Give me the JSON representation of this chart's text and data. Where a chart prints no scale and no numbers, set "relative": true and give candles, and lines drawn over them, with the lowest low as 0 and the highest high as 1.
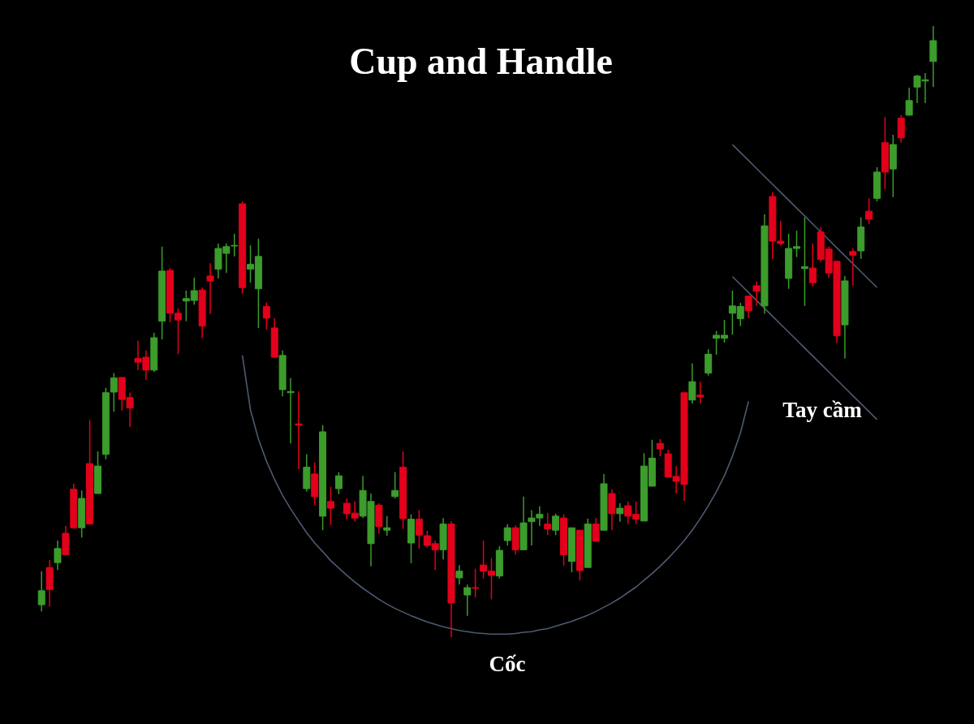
{
  "chart_data": {
    "type": "candlestick",
    "title": "Cup and Handle",
    "relative": true,
    "annotations": [
      "Cốc",
      "Tay cầm"
    ],
    "categories": [
      null,
      null,
      null,
      null,
      null,
      null,
      null,
      null,
      null,
      null,
      null,
      null,
      null,
      null,
      null,
      null,
      null,
      null,
      null,
      null,
      null,
      null,
      null,
      null,
      null,
      null,
      null,
      null,
      null,
      null,
      null,
      null,
      null,
      null,
      null,
      null,
      null,
      null,
      null,
      null,
      null,
      null,
      null,
      null,
      null,
      null,
      null,
      null,
      null,
      null,
      null,
      null,
      null,
      null,
      null,
      null,
      null,
      null,
      null,
      null,
      null,
      null,
      null,
      null,
      null,
      null,
      null,
      null,
      null,
      null,
      null,
      null,
      null,
      null,
      null,
      null,
      null,
      null,
      null,
      null,
      null,
      null,
      null,
      null,
      null,
      null,
      null,
      null,
      null,
      null,
      null,
      null,
      null,
      null,
      null,
      null,
      null,
      null,
      null,
      null,
      null,
      null,
      null,
      null,
      null,
      null,
      null,
      null,
      null,
      null,
      null,
      null
    ],
    "series": [
      {
        "type": "line",
        "color": "#4d5b70",
        "values": [
          null,
          null,
          null,
          null,
          null,
          null,
          null,
          null,
          null,
          null,
          null,
          null,
          null,
          null,
          null,
          null,
          null,
          null,
          null,
          null,
          null,
          null,
          null,
          null,
          null,
          0.461,
          0.372,
          0.324,
          0.288,
          0.258,
          0.232,
          0.21,
          0.19,
          0.171,
          0.154,
          0.14,
          0.125,
          0.113,
          0.101,
          0.09,
          0.08,
          0.071,
          0.062,
          0.054,
          0.047,
          0.041,
          0.035,
          0.03,
          0.025,
          0.021,
          0.017,
          0.014,
          0.011,
          0.009,
          0.007,
          0.006,
          0.005,
          0.005,
          0.005,
          0.006,
          0.008,
          0.009,
          0.012,
          0.014,
          0.018,
          0.022,
          0.026,
          0.031,
          0.036,
          0.042,
          0.049,
          0.056,
          0.064,
          0.073,
          0.082,
          0.093,
          0.104,
          0.116,
          0.129,
          0.143,
          0.158,
          0.175,
          0.194,
          0.215,
          0.238,
          0.264,
          0.296,
          0.334,
          0.386,
          null,
          null,
          null,
          null,
          null,
          null,
          null,
          null,
          null,
          null,
          null,
          null,
          null,
          null,
          null,
          null,
          null,
          null,
          null,
          null,
          null,
          null,
          null
        ]
      },
      {
        "type": "line",
        "color": "#4d5b70",
        "values": [
          null,
          null,
          null,
          null,
          null,
          null,
          null,
          null,
          null,
          null,
          null,
          null,
          null,
          null,
          null,
          null,
          null,
          null,
          null,
          null,
          null,
          null,
          null,
          null,
          null,
          null,
          null,
          null,
          null,
          null,
          null,
          null,
          null,
          null,
          null,
          null,
          null,
          null,
          null,
          null,
          null,
          null,
          null,
          null,
          null,
          null,
          null,
          null,
          null,
          null,
          null,
          null,
          null,
          null,
          null,
          null,
          null,
          null,
          null,
          null,
          null,
          null,
          null,
          null,
          null,
          null,
          null,
          null,
          null,
          null,
          null,
          null,
          null,
          null,
          null,
          null,
          null,
          null,
          null,
          null,
          null,
          null,
          null,
          null,
          null,
          null,
          0.806,
          0.793,
          0.78,
          0.767,
          0.754,
          0.741,
          0.728,
          0.715,
          0.702,
          0.689,
          0.676,
          0.663,
          0.65,
          0.637,
          0.624,
          0.611,
          0.598,
          0.585,
          0.572,
          null,
          null,
          null,
          null,
          null,
          null,
          null
        ]
      },
      {
        "type": "line",
        "color": "#4d5b70",
        "values": [
          null,
          null,
          null,
          null,
          null,
          null,
          null,
          null,
          null,
          null,
          null,
          null,
          null,
          null,
          null,
          null,
          null,
          null,
          null,
          null,
          null,
          null,
          null,
          null,
          null,
          null,
          null,
          null,
          null,
          null,
          null,
          null,
          null,
          null,
          null,
          null,
          null,
          null,
          null,
          null,
          null,
          null,
          null,
          null,
          null,
          null,
          null,
          null,
          null,
          null,
          null,
          null,
          null,
          null,
          null,
          null,
          null,
          null,
          null,
          null,
          null,
          null,
          null,
          null,
          null,
          null,
          null,
          null,
          null,
          null,
          null,
          null,
          null,
          null,
          null,
          null,
          null,
          null,
          null,
          null,
          null,
          null,
          null,
          null,
          null,
          null,
          0.59,
          0.577,
          0.564,
          0.551,
          0.538,
          0.525,
          0.512,
          0.499,
          0.486,
          0.473,
          0.46,
          0.447,
          0.434,
          0.421,
          0.408,
          0.395,
          0.382,
          0.369,
          0.356,
          null,
          null,
          null,
          null,
          null,
          null,
          null
        ]
      }
    ],
    "ohlc": [
      [
        0.053,
        0.108,
        0.042,
        0.076
      ],
      [
        0.114,
        0.126,
        0.05,
        0.078
      ],
      [
        0.122,
        0.158,
        0.11,
        0.145
      ],
      [
        0.17,
        0.182,
        0.135,
        0.135
      ],
      [
        0.242,
        0.251,
        0.177,
        0.179
      ],
      [
        0.179,
        0.24,
        0.163,
        0.227
      ],
      [
        0.284,
        0.355,
        0.185,
        0.185
      ],
      [
        0.235,
        0.304,
        0.235,
        0.28
      ],
      [
        0.299,
        0.408,
        0.291,
        0.4
      ],
      [
        0.401,
        0.432,
        0.369,
        0.424
      ],
      [
        0.425,
        0.425,
        0.371,
        0.389
      ],
      [
        0.392,
        0.4,
        0.344,
        0.375
      ],
      [
        0.456,
        0.485,
        0.437,
        0.45
      ],
      [
        0.458,
        0.469,
        0.421,
        0.437
      ],
      [
        0.437,
        0.498,
        0.434,
        0.49
      ],
      [
        0.517,
        0.639,
        0.487,
        0.599
      ],
      [
        0.6,
        0.604,
        0.515,
        0.53
      ],
      [
        0.53,
        0.538,
        0.463,
        0.519
      ],
      [
        0.55,
        0.567,
        0.517,
        0.554
      ],
      [
        0.551,
        0.588,
        0.544,
        0.567
      ],
      [
        0.568,
        0.572,
        0.489,
        0.509
      ],
      [
        0.591,
        0.612,
        0.529,
        0.583
      ],
      [
        0.602,
        0.644,
        0.587,
        0.636
      ],
      [
        0.628,
        0.644,
        0.596,
        0.639
      ],
      [
        0.64,
        0.66,
        0.623,
        0.641
      ],
      [
        0.709,
        0.713,
        0.562,
        0.572
      ],
      [
        0.602,
        0.641,
        0.58,
        0.61
      ],
      [
        0.57,
        0.652,
        0.506,
        0.623
      ],
      [
        0.541,
        0.548,
        0.503,
        0.522
      ],
      [
        0.506,
        0.522,
        0.458,
        0.458
      ],
      [
        0.405,
        0.469,
        0.394,
        0.461
      ],
      [
        0.4,
        0.424,
        0.317,
        0.402
      ],
      [
        0.349,
        0.402,
        0.275,
        0.347
      ],
      [
        0.243,
        0.299,
        0.238,
        0.278
      ],
      [
        0.267,
        0.286,
        0.216,
        0.23
      ],
      [
        0.198,
        0.347,
        0.175,
        0.336
      ],
      [
        0.222,
        0.246,
        0.183,
        0.211
      ],
      [
        0.243,
        0.27,
        0.234,
        0.264
      ],
      [
        0.219,
        0.227,
        0.193,
        0.202
      ],
      [
        0.203,
        0.222,
        0.189,
        0.195
      ],
      [
        0.198,
        0.264,
        0.195,
        0.24
      ],
      [
        0.153,
        0.235,
        0.116,
        0.222
      ],
      [
        0.216,
        0.219,
        0.169,
        0.181
      ],
      [
        0.175,
        0.198,
        0.166,
        0.179
      ],
      [
        0.23,
        0.27,
        0.227,
        0.24
      ],
      [
        0.278,
        0.304,
        0.177,
        0.194
      ],
      [
        0.154,
        0.201,
        0.121,
        0.193
      ],
      [
        0.193,
        0.208,
        0.145,
        0.167
      ],
      [
        0.166,
        0.174,
        0.146,
        0.15
      ],
      [
        0.153,
        0.158,
        0.11,
        0.143
      ],
      [
        0.143,
        0.195,
        0.127,
        0.185
      ],
      [
        0.185,
        0.19,
        0,
        0.056
      ],
      [
        0.097,
        0.118,
        0.086,
        0.108
      ],
      [
        0.069,
        0.086,
        0.035,
        0.081
      ],
      [
        0.081,
        0.112,
        0.065,
        0.08
      ],
      [
        0.118,
        0.158,
        0.096,
        0.108
      ],
      [
        0.108,
        0.129,
        0.062,
        0.101
      ],
      [
        0.1,
        0.149,
        0.096,
        0.142
      ],
      [
        0.158,
        0.185,
        0.15,
        0.179
      ],
      [
        0.179,
        0.183,
        0.135,
        0.143
      ],
      [
        0.143,
        0.23,
        0.143,
        0.187
      ],
      [
        0.189,
        0.208,
        0.15,
        0.195
      ],
      [
        0.195,
        0.214,
        0.182,
        0.201
      ],
      [
        0.185,
        0.203,
        0.167,
        0.177
      ],
      [
        0.175,
        0.202,
        0.167,
        0.198
      ],
      [
        0.195,
        0.201,
        0.117,
        0.135
      ],
      [
        0.124,
        0.179,
        0.106,
        0.179
      ],
      [
        0.175,
        0.175,
        0.093,
        0.109
      ],
      [
        0.114,
        0.194,
        0.114,
        0.185
      ],
      [
        0.185,
        0.195,
        0.157,
        0.157
      ],
      [
        0.175,
        0.267,
        0.175,
        0.251
      ],
      [
        0.235,
        0.242,
        0.175,
        0.202
      ],
      [
        0.202,
        0.219,
        0.189,
        0.211
      ],
      [
        0.215,
        0.222,
        0.185,
        0.198
      ],
      [
        0.201,
        0.222,
        0.185,
        0.193
      ],
      [
        0.19,
        0.301,
        0.19,
        0.28
      ],
      [
        0.247,
        0.323,
        0.247,
        0.293
      ],
      [
        0.317,
        0.324,
        0.296,
        0.308
      ],
      [
        0.3,
        0.307,
        0.262,
        0.262
      ],
      [
        0.263,
        0.28,
        0.235,
        0.255
      ],
      [
        0.4,
        0.4,
        0.223,
        0.25
      ],
      [
        0.388,
        0.448,
        0.382,
        0.418
      ],
      [
        0.396,
        0.418,
        0.382,
        0.393
      ],
      [
        0.432,
        0.471,
        0.428,
        0.463
      ],
      [
        0.489,
        0.501,
        0.462,
        0.494
      ],
      [
        0.489,
        0.519,
        0.482,
        0.494
      ],
      [
        0.53,
        0.567,
        0.495,
        0.542
      ],
      [
        0.521,
        0.547,
        0.509,
        0.541
      ],
      [
        0.558,
        0.558,
        0.522,
        0.534
      ],
      [
        0.575,
        0.582,
        0.542,
        0.566
      ],
      [
        0.542,
        0.692,
        0.529,
        0.673
      ],
      [
        0.721,
        0.728,
        0.619,
        0.648
      ],
      [
        0.648,
        0.681,
        0.641,
        0.644
      ],
      [
        0.587,
        0.66,
        0.57,
        0.636
      ],
      [
        0.636,
        0.665,
        0.622,
        0.639
      ],
      [
        0.603,
        0.687,
        0.542,
        0.606
      ],
      [
        0.604,
        0.644,
        0.574,
        0.58
      ],
      [
        0.663,
        0.671,
        0.614,
        0.618
      ],
      [
        0.635,
        0.639,
        0.588,
        0.596
      ],
      [
        0.615,
        0.615,
        0.481,
        0.493
      ],
      [
        0.511,
        0.591,
        0.456,
        0.583
      ],
      [
        0.631,
        0.636,
        0.575,
        0.625
      ],
      [
        0.632,
        0.687,
        0.619,
        0.671
      ],
      [
        0.697,
        0.718,
        0.676,
        0.684
      ],
      [
        0.718,
        0.769,
        0.713,
        0.761
      ],
      [
        0.809,
        0.851,
        0.733,
        0.761
      ],
      [
        0.766,
        0.822,
        0.72,
        0.806
      ],
      [
        0.849,
        0.854,
        0.809,
        0.817
      ],
      [
        0.854,
        0.899,
        0.854,
        0.878
      ],
      [
        0.9,
        0.92,
        0.874,
        0.918
      ],
      [
        0.91,
        0.923,
        0.874,
        0.912
      ],
      [
        0.942,
        1.0,
        0.9,
        0.976
      ]
    ],
    "colors": [
      "#3c9c2c",
      "#e3001b",
      "#3c9c2c",
      "#e3001b",
      "#e3001b",
      "#3c9c2c",
      "#e3001b",
      "#3c9c2c",
      "#3c9c2c",
      "#3c9c2c",
      "#e3001b",
      "#e3001b",
      "#e3001b",
      "#e3001b",
      "#3c9c2c",
      "#3c9c2c",
      "#e3001b",
      "#e3001b",
      "#3c9c2c",
      "#3c9c2c",
      "#e3001b",
      "#e3001b",
      "#3c9c2c",
      "#3c9c2c",
      "#3c9c2c",
      "#e3001b",
      "#3c9c2c",
      "#3c9c2c",
      "#e3001b",
      "#e3001b",
      "#3c9c2c",
      "#3c9c2c",
      "#e3001b",
      "#3c9c2c",
      "#e3001b",
      "#3c9c2c",
      "#e3001b",
      "#3c9c2c",
      "#e3001b",
      "#e3001b",
      "#3c9c2c",
      "#3c9c2c",
      "#e3001b",
      "#3c9c2c",
      "#3c9c2c",
      "#e3001b",
      "#3c9c2c",
      "#e3001b",
      "#e3001b",
      "#e3001b",
      "#3c9c2c",
      "#e3001b",
      "#3c9c2c",
      "#3c9c2c",
      "#e3001b",
      "#e3001b",
      "#e3001b",
      "#3c9c2c",
      "#3c9c2c",
      "#e3001b",
      "#3c9c2c",
      "#3c9c2c",
      "#3c9c2c",
      "#e3001b",
      "#3c9c2c",
      "#e3001b",
      "#3c9c2c",
      "#e3001b",
      "#3c9c2c",
      "#e3001b",
      "#3c9c2c",
      "#e3001b",
      "#3c9c2c",
      "#e3001b",
      "#e3001b",
      "#3c9c2c",
      "#3c9c2c",
      "#e3001b",
      "#e3001b",
      "#e3001b",
      "#e3001b",
      "#3c9c2c",
      "#e3001b",
      "#3c9c2c",
      "#3c9c2c",
      "#3c9c2c",
      "#3c9c2c",
      "#3c9c2c",
      "#e3001b",
      "#e3001b",
      "#3c9c2c",
      "#e3001b",
      "#e3001b",
      "#3c9c2c",
      "#3c9c2c",
      "#3c9c2c",
      "#e3001b",
      "#e3001b",
      "#e3001b",
      "#e3001b",
      "#3c9c2c",
      "#e3001b",
      "#3c9c2c",
      "#e3001b",
      "#3c9c2c",
      "#e3001b",
      "#3c9c2c",
      "#e3001b",
      "#3c9c2c",
      "#3c9c2c",
      "#3c9c2c",
      "#3c9c2c"
    ]
  }
}
